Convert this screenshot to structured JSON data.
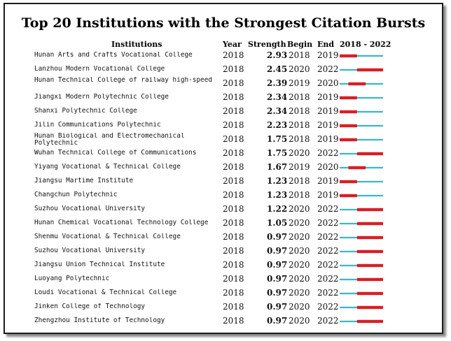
{
  "chart_data": {
    "type": "table",
    "title": "Top 20 Institutions with the Strongest Citation Bursts",
    "columns": [
      "Institutions",
      "Year",
      "Strength",
      "Begin",
      "End",
      "2018 - 2022"
    ],
    "range_start": 2018,
    "range_end": 2022,
    "base_color": "#3db8c4",
    "burst_color": "#d81f26",
    "rows": [
      {
        "institution": "Hunan Arts and Crafts Vocational College",
        "year": "2018",
        "strength": "2.93",
        "begin": "2018",
        "end": "2019"
      },
      {
        "institution": "Lanzhou Modern Vocational College",
        "year": "2018",
        "strength": "2.45",
        "begin": "2020",
        "end": "2022"
      },
      {
        "institution": "Hunan Technical College of railway high-speed",
        "year": "2018",
        "strength": "2.39",
        "begin": "2019",
        "end": "2020"
      },
      {
        "institution": "Jiangxi Modern Polytechnic College",
        "year": "2018",
        "strength": "2.34",
        "begin": "2018",
        "end": "2019"
      },
      {
        "institution": "Shanxi Polytechnic College",
        "year": "2018",
        "strength": "2.34",
        "begin": "2018",
        "end": "2019"
      },
      {
        "institution": "Jilin Communications Polytechnic",
        "year": "2018",
        "strength": "2.23",
        "begin": "2018",
        "end": "2019"
      },
      {
        "institution": "Hunan Biological and Electromechanical Polytechnic",
        "year": "2018",
        "strength": "1.75",
        "begin": "2018",
        "end": "2019"
      },
      {
        "institution": "Wuhan Technical College of Communications",
        "year": "2018",
        "strength": "1.75",
        "begin": "2020",
        "end": "2022"
      },
      {
        "institution": "Yiyang Vocational & Technical College",
        "year": "2018",
        "strength": "1.67",
        "begin": "2019",
        "end": "2020"
      },
      {
        "institution": "Jiangsu Martime Institute",
        "year": "2018",
        "strength": "1.23",
        "begin": "2018",
        "end": "2019"
      },
      {
        "institution": "Changchun Polytechnic",
        "year": "2018",
        "strength": "1.23",
        "begin": "2018",
        "end": "2019"
      },
      {
        "institution": "Suzhou Vocational University",
        "year": "2018",
        "strength": "1.22",
        "begin": "2020",
        "end": "2022"
      },
      {
        "institution": "Hunan Chemical Vocational Technology College",
        "year": "2018",
        "strength": "1.05",
        "begin": "2020",
        "end": "2022"
      },
      {
        "institution": "Shenmu Vocational & Technical College",
        "year": "2018",
        "strength": "0.97",
        "begin": "2020",
        "end": "2022"
      },
      {
        "institution": "Suzhou Vocational University",
        "year": "2018",
        "strength": "0.97",
        "begin": "2020",
        "end": "2022"
      },
      {
        "institution": "Jiangsu Union Technical Institute",
        "year": "2018",
        "strength": "0.97",
        "begin": "2020",
        "end": "2022"
      },
      {
        "institution": "Luoyang Polytechnic",
        "year": "2018",
        "strength": "0.97",
        "begin": "2020",
        "end": "2022"
      },
      {
        "institution": "Loudi Vocational & Technical College",
        "year": "2018",
        "strength": "0.97",
        "begin": "2020",
        "end": "2022"
      },
      {
        "institution": "Jinken College of Technology",
        "year": "2018",
        "strength": "0.97",
        "begin": "2020",
        "end": "2022"
      },
      {
        "institution": "Zhengzhou Institute of Technology",
        "year": "2018",
        "strength": "0.97",
        "begin": "2020",
        "end": "2022"
      }
    ]
  }
}
